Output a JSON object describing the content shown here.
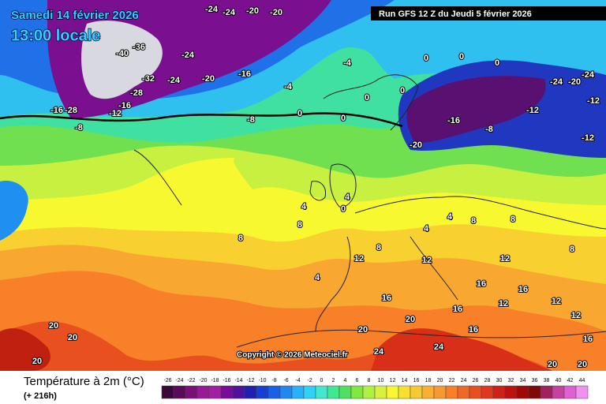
{
  "header": {
    "date": "Samedi 14 février 2026",
    "time": "13:00 locale",
    "run": "Run GFS 12 Z du Jeudi 5 février 2026"
  },
  "copyright": "Copyright © 2026 Meteociel.fr",
  "legend": {
    "title": "Température à 2m (°C)",
    "lead": "(+ 216h)",
    "values": [
      -26,
      -24,
      -22,
      -20,
      -18,
      -16,
      -14,
      -12,
      -10,
      -8,
      -6,
      -4,
      -2,
      0,
      2,
      4,
      6,
      8,
      10,
      12,
      14,
      16,
      18,
      20,
      22,
      24,
      26,
      28,
      30,
      32,
      34,
      36,
      38,
      40,
      42,
      44
    ],
    "colors": [
      "#3a0838",
      "#5a0a58",
      "#781078",
      "#981898",
      "#a020a0",
      "#7a0a9a",
      "#5010a0",
      "#2020b0",
      "#1840d0",
      "#1860e8",
      "#2088f0",
      "#28b0f8",
      "#30d0f8",
      "#40e8d0",
      "#40e890",
      "#50e060",
      "#80e840",
      "#b0f040",
      "#d8f040",
      "#f8f830",
      "#f8e030",
      "#f8c830",
      "#f8b030",
      "#f89830",
      "#f88028",
      "#f06828",
      "#e85020",
      "#e03820",
      "#d02018",
      "#c01010",
      "#a00808",
      "#800808",
      "#a02060",
      "#c840a0",
      "#e060d0",
      "#f090f0"
    ]
  },
  "map_labels": [
    -24,
    -24,
    -20,
    -20,
    -40,
    -36,
    -24,
    -28,
    -32,
    -28,
    -24,
    -20,
    -16,
    -12,
    -16,
    -8,
    -16,
    -4,
    -8,
    0,
    0,
    0,
    0,
    -4,
    0,
    0,
    0,
    -24,
    -20,
    -24,
    -12,
    -16,
    -20,
    -8,
    -12,
    -12,
    4,
    4,
    0,
    8,
    8,
    4,
    8,
    12,
    12,
    8,
    12,
    16,
    16,
    16,
    20,
    20,
    20,
    24,
    20,
    24,
    16,
    12,
    16,
    20,
    20,
    20,
    16,
    12,
    12,
    8,
    4,
    8,
    4
  ]
}
